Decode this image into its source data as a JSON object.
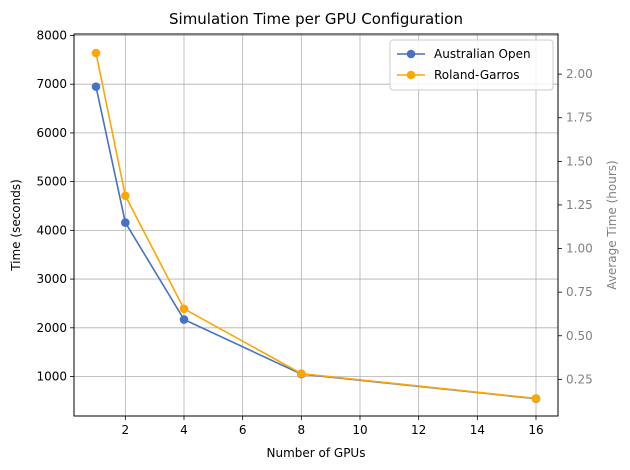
{
  "chart_data": {
    "type": "line",
    "title": "Simulation Time per GPU Configuration",
    "xlabel": "Number of GPUs",
    "ylabel": "Time (seconds)",
    "ylabel_right": "Average Time (hours)",
    "x": [
      1,
      2,
      4,
      8,
      16
    ],
    "xlim": [
      0.25,
      16.75
    ],
    "ylim": [
      190,
      8030
    ],
    "xticks": [
      2,
      4,
      6,
      8,
      10,
      12,
      14,
      16
    ],
    "yticks": [
      1000,
      2000,
      3000,
      4000,
      5000,
      6000,
      7000,
      8000
    ],
    "ylim_right": [
      0.04,
      2.23
    ],
    "yticks_right": [
      "0.25",
      "0.50",
      "0.75",
      "1.00",
      "1.25",
      "1.50",
      "1.75",
      "2.00"
    ],
    "grid": true,
    "legend_position": "top-right",
    "series": [
      {
        "name": "Australian Open",
        "color": "#4472C4",
        "values": [
          6950,
          4160,
          2170,
          1050,
          545
        ]
      },
      {
        "name": "Roland-Garros",
        "color": "#FFA500",
        "values": [
          7640,
          4710,
          2390,
          1060,
          550
        ]
      }
    ]
  }
}
